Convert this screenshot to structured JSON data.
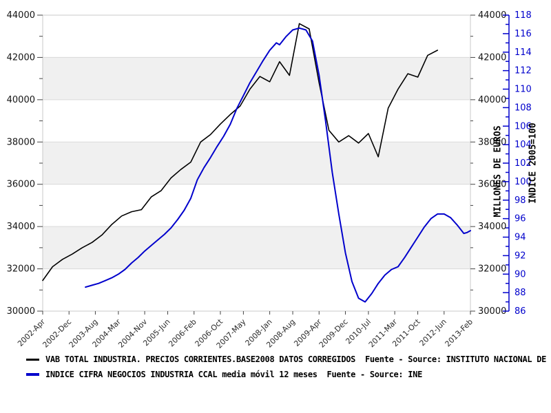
{
  "colors": {
    "band": "#f0f0f0",
    "grid": "#d9d9d9",
    "border": "#c9c9c9",
    "tick": "#444444",
    "vab_line": "#000000",
    "indice_line": "#0000cc"
  },
  "legend": {
    "entries": [
      {
        "label": "VAB TOTAL INDUSTRIA. PRECIOS CORRIENTES.BASE2008 DATOS CORREGIDOS  Fuente - Source: INSTITUTO NACIONAL DE E",
        "color": "#000000"
      },
      {
        "label": "INDICE CIFRA NEGOCIOS INDUSTRIA CCAL media móvil 12 meses  Fuente - Source: INE",
        "color": "#0000cc"
      }
    ]
  },
  "chart_data": {
    "type": "line",
    "title": "",
    "grid": "horizontal-bands",
    "legend_position": "bottom-left",
    "x_axis": {
      "start": "2002-04",
      "end": "2013-02",
      "ticks": [
        {
          "label": "2002-Apr",
          "m": 0
        },
        {
          "label": "2002-Dec",
          "m": 8
        },
        {
          "label": "2003-Aug",
          "m": 16
        },
        {
          "label": "2004-Mar",
          "m": 23
        },
        {
          "label": "2004-Nov",
          "m": 31
        },
        {
          "label": "2005-Jun",
          "m": 38
        },
        {
          "label": "2006-Feb",
          "m": 46
        },
        {
          "label": "2006-Oct",
          "m": 54
        },
        {
          "label": "2007-May",
          "m": 61
        },
        {
          "label": "2008-Jan",
          "m": 69
        },
        {
          "label": "2008-Aug",
          "m": 76
        },
        {
          "label": "2009-Apr",
          "m": 84
        },
        {
          "label": "2009-Dec",
          "m": 92
        },
        {
          "label": "2010-Jul",
          "m": 99
        },
        {
          "label": "2011-Mar",
          "m": 107
        },
        {
          "label": "2011-Oct",
          "m": 114
        },
        {
          "label": "2012-Jun",
          "m": 122
        },
        {
          "label": "2013-Feb",
          "m": 130
        }
      ]
    },
    "y_axis_euros": {
      "title": "MILLONES DE EUROS",
      "min": 30000,
      "max": 44000,
      "tick_step": 2000,
      "tick_labels": [
        "44000",
        "42000",
        "40000",
        "38000",
        "36000",
        "34000",
        "32000",
        "30000"
      ],
      "shaded_bands": [
        [
          42000,
          40000
        ],
        [
          38000,
          36000
        ],
        [
          34000,
          32000
        ]
      ]
    },
    "y_axis_index": {
      "title": "INDICE 2005=100",
      "min": 86,
      "max": 118,
      "tick_step": 2,
      "tick_labels": [
        "118",
        "116",
        "114",
        "112",
        "110",
        "108",
        "106",
        "104",
        "102",
        "100",
        "98",
        "96",
        "94",
        "92",
        "90",
        "88",
        "86"
      ]
    },
    "series": [
      {
        "name": "VAB TOTAL INDUSTRIA. PRECIOS CORRIENTES.BASE2008 DATOS CORREGIDOS",
        "axis": "euros",
        "color": "#000000",
        "width": 1.6,
        "points": [
          [
            "2002-04",
            31450
          ],
          [
            "2002-07",
            32100
          ],
          [
            "2002-10",
            32450
          ],
          [
            "2003-01",
            32700
          ],
          [
            "2003-04",
            33000
          ],
          [
            "2003-07",
            33250
          ],
          [
            "2003-10",
            33600
          ],
          [
            "2004-01",
            34100
          ],
          [
            "2004-04",
            34500
          ],
          [
            "2004-07",
            34700
          ],
          [
            "2004-10",
            34800
          ],
          [
            "2005-01",
            35400
          ],
          [
            "2005-04",
            35700
          ],
          [
            "2005-07",
            36300
          ],
          [
            "2005-10",
            36700
          ],
          [
            "2006-01",
            37050
          ],
          [
            "2006-04",
            38000
          ],
          [
            "2006-07",
            38350
          ],
          [
            "2006-10",
            38850
          ],
          [
            "2007-01",
            39300
          ],
          [
            "2007-04",
            39700
          ],
          [
            "2007-07",
            40500
          ],
          [
            "2007-10",
            41100
          ],
          [
            "2008-01",
            40850
          ],
          [
            "2008-04",
            41800
          ],
          [
            "2008-07",
            41150
          ],
          [
            "2008-10",
            43600
          ],
          [
            "2009-01",
            43350
          ],
          [
            "2009-04",
            40800
          ],
          [
            "2009-07",
            38550
          ],
          [
            "2009-10",
            38000
          ],
          [
            "2010-01",
            38300
          ],
          [
            "2010-04",
            37950
          ],
          [
            "2010-07",
            38400
          ],
          [
            "2010-10",
            37300
          ],
          [
            "2011-01",
            39600
          ],
          [
            "2011-04",
            40500
          ],
          [
            "2011-07",
            41230
          ],
          [
            "2011-10",
            41070
          ],
          [
            "2012-01",
            42100
          ],
          [
            "2012-04",
            42340
          ]
        ]
      },
      {
        "name": "INDICE CIFRA NEGOCIOS INDUSTRIA CCAL media móvil 12 meses",
        "axis": "index",
        "color": "#0000cc",
        "width": 2,
        "points": [
          [
            "2003-05",
            88.6
          ],
          [
            "2003-07",
            88.8
          ],
          [
            "2003-09",
            89.0
          ],
          [
            "2003-11",
            89.3
          ],
          [
            "2004-01",
            89.6
          ],
          [
            "2004-03",
            90.0
          ],
          [
            "2004-05",
            90.5
          ],
          [
            "2004-07",
            91.2
          ],
          [
            "2004-09",
            91.8
          ],
          [
            "2004-11",
            92.5
          ],
          [
            "2005-01",
            93.1
          ],
          [
            "2005-03",
            93.7
          ],
          [
            "2005-05",
            94.3
          ],
          [
            "2005-07",
            95.0
          ],
          [
            "2005-09",
            95.9
          ],
          [
            "2005-11",
            96.9
          ],
          [
            "2006-01",
            98.2
          ],
          [
            "2006-03",
            100.2
          ],
          [
            "2006-05",
            101.5
          ],
          [
            "2006-07",
            102.6
          ],
          [
            "2006-09",
            103.8
          ],
          [
            "2006-11",
            104.9
          ],
          [
            "2007-01",
            106.2
          ],
          [
            "2007-03",
            107.9
          ],
          [
            "2007-05",
            109.3
          ],
          [
            "2007-07",
            110.7
          ],
          [
            "2007-09",
            111.9
          ],
          [
            "2007-11",
            113.1
          ],
          [
            "2008-01",
            114.2
          ],
          [
            "2008-03",
            115.0
          ],
          [
            "2008-04",
            114.8
          ],
          [
            "2008-06",
            115.7
          ],
          [
            "2008-08",
            116.4
          ],
          [
            "2008-10",
            116.6
          ],
          [
            "2008-12",
            116.4
          ],
          [
            "2009-02",
            115.2
          ],
          [
            "2009-04",
            111.5
          ],
          [
            "2009-06",
            106.5
          ],
          [
            "2009-08",
            101.0
          ],
          [
            "2009-10",
            96.5
          ],
          [
            "2009-12",
            92.3
          ],
          [
            "2010-02",
            89.2
          ],
          [
            "2010-04",
            87.4
          ],
          [
            "2010-06",
            87.0
          ],
          [
            "2010-08",
            87.9
          ],
          [
            "2010-10",
            89.0
          ],
          [
            "2010-12",
            89.9
          ],
          [
            "2011-02",
            90.5
          ],
          [
            "2011-04",
            90.8
          ],
          [
            "2011-06",
            91.8
          ],
          [
            "2011-08",
            92.9
          ],
          [
            "2011-10",
            94.0
          ],
          [
            "2011-12",
            95.1
          ],
          [
            "2012-02",
            96.0
          ],
          [
            "2012-04",
            96.5
          ],
          [
            "2012-06",
            96.5
          ],
          [
            "2012-08",
            96.1
          ],
          [
            "2012-10",
            95.3
          ],
          [
            "2012-12",
            94.4
          ],
          [
            "2013-01",
            94.5
          ],
          [
            "2013-02",
            94.7
          ]
        ]
      }
    ]
  }
}
